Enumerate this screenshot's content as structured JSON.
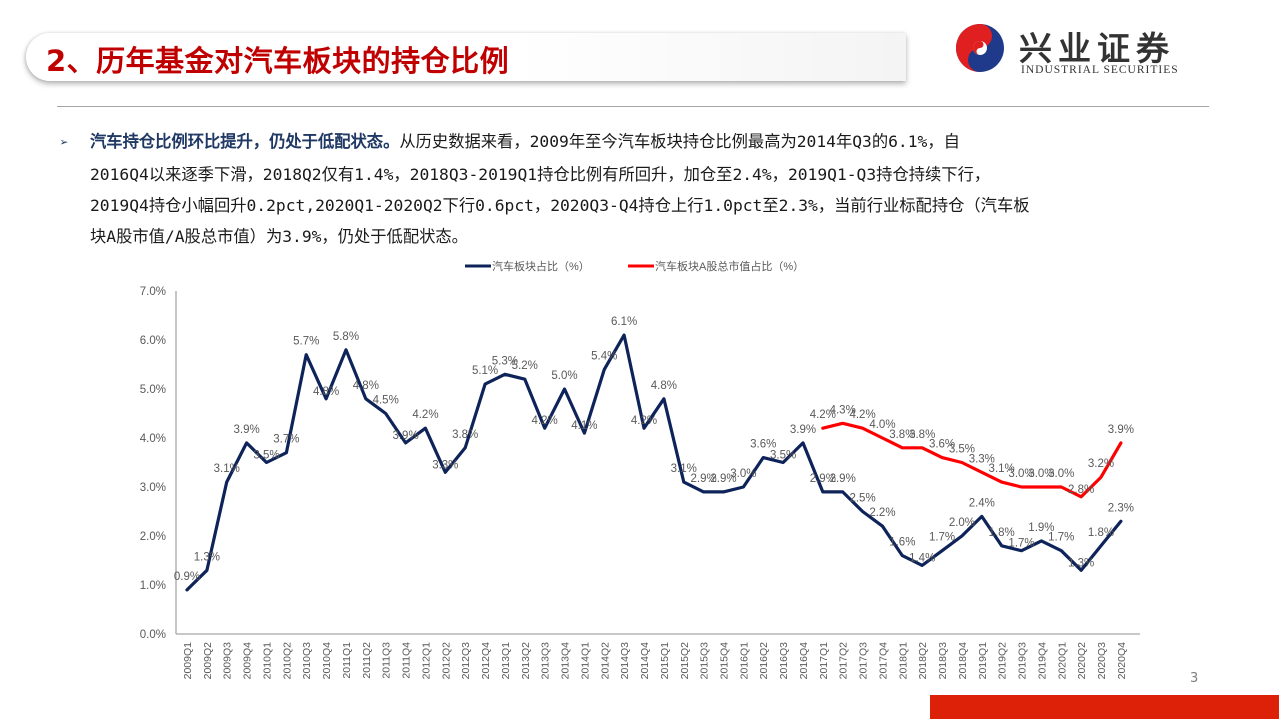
{
  "header": {
    "title": "2、历年基金对汽车板块的持仓比例",
    "logo": {
      "cn_name": "兴业证券",
      "en_name": "INDUSTRIAL SECURITIES",
      "colors": {
        "red": "#e02020",
        "blue": "#1f3a8a"
      }
    }
  },
  "body": {
    "bullet_icon": "➢",
    "lead": "汽车持仓比例环比提升，仍处于低配状态。",
    "lines": [
      "从历史数据来看，2009年至今汽车板块持仓比例最高为2014年Q3的6.1%，自",
      "2016Q4以来逐季下滑，2018Q2仅有1.4%，2018Q3-2019Q1持仓比例有所回升，加仓至2.4%，2019Q1-Q3持仓持续下行，",
      "2019Q4持仓小幅回升0.2pct,2020Q1-2020Q2下行0.6pct，2020Q3-Q4持仓上行1.0pct至2.3%，当前行业标配持仓（汽车板",
      "块A股市值/A股总市值）为3.9%，仍处于低配状态。"
    ]
  },
  "footer": {
    "page_number": "3",
    "bar_color": "#dd2008"
  },
  "chart_data": {
    "type": "line",
    "title": "",
    "xlabel": "",
    "ylabel": "",
    "ylim": [
      0,
      7.0
    ],
    "y_ticks": [
      "0.0%",
      "1.0%",
      "2.0%",
      "3.0%",
      "4.0%",
      "5.0%",
      "6.0%",
      "7.0%"
    ],
    "grid": false,
    "legend_position": "top",
    "categories": [
      "2009Q1",
      "2009Q2",
      "2009Q3",
      "2009Q4",
      "2010Q1",
      "2010Q2",
      "2010Q3",
      "2010Q4",
      "2011Q1",
      "2011Q2",
      "2011Q3",
      "2011Q4",
      "2012Q1",
      "2012Q2",
      "2012Q3",
      "2012Q4",
      "2013Q1",
      "2013Q2",
      "2013Q3",
      "2013Q4",
      "2014Q1",
      "2014Q2",
      "2014Q3",
      "2014Q4",
      "2015Q1",
      "2015Q2",
      "2015Q3",
      "2015Q4",
      "2016Q1",
      "2016Q2",
      "2016Q3",
      "2016Q4",
      "2017Q1",
      "2017Q2",
      "2017Q3",
      "2017Q4",
      "2018Q1",
      "2018Q2",
      "2018Q3",
      "2018Q4",
      "2019Q1",
      "2019Q2",
      "2019Q3",
      "2019Q4",
      "2020Q1",
      "2020Q2",
      "2020Q3",
      "2020Q4"
    ],
    "series": [
      {
        "name": "汽车板块占比（%）",
        "color": "#0d2359",
        "values": [
          0.9,
          1.3,
          3.1,
          3.9,
          3.5,
          3.7,
          5.7,
          4.8,
          5.8,
          4.8,
          4.5,
          3.9,
          4.2,
          3.3,
          3.8,
          5.1,
          5.3,
          5.2,
          4.2,
          5.0,
          4.1,
          5.4,
          6.1,
          4.2,
          4.8,
          3.1,
          2.9,
          2.9,
          3.0,
          3.6,
          3.5,
          3.9,
          2.9,
          2.9,
          2.5,
          2.2,
          1.6,
          1.4,
          1.7,
          2.0,
          2.4,
          1.8,
          1.7,
          1.9,
          1.7,
          1.3,
          1.8,
          2.3
        ]
      },
      {
        "name": "汽车板块A股总市值占比（%）",
        "color": "#ff0000",
        "values": [
          null,
          null,
          null,
          null,
          null,
          null,
          null,
          null,
          null,
          null,
          null,
          null,
          null,
          null,
          null,
          null,
          null,
          null,
          null,
          null,
          null,
          null,
          null,
          null,
          null,
          null,
          null,
          null,
          null,
          null,
          null,
          null,
          4.2,
          4.3,
          4.2,
          4.0,
          3.8,
          3.8,
          3.6,
          3.5,
          3.3,
          3.1,
          3.0,
          3.0,
          3.0,
          2.8,
          3.2,
          3.9
        ]
      }
    ],
    "label_color": "#595959",
    "axis_color": "#a6a6a6"
  }
}
